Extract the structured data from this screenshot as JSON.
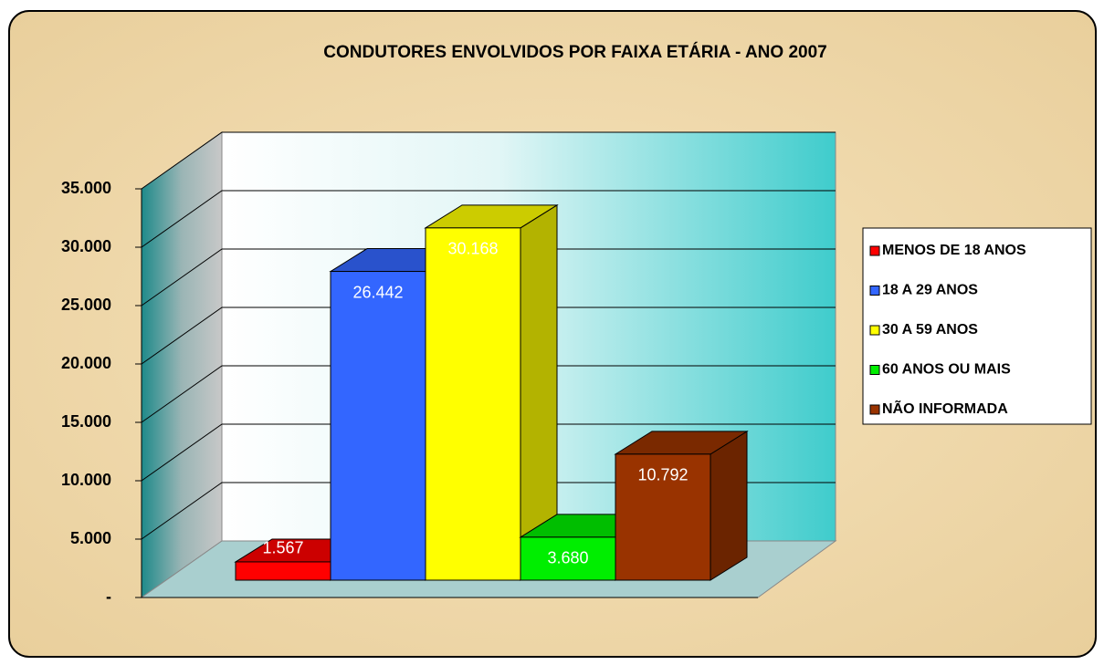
{
  "chart_data": {
    "type": "bar3d",
    "title": "CONDUTORES  ENVOLVIDOS POR FAIXA ETÁRIA - ANO  2007",
    "series": [
      {
        "name": "MENOS DE 18 ANOS",
        "color": "#ff0000",
        "values": [
          1567
        ],
        "value_labels": [
          "1.567"
        ]
      },
      {
        "name": "18 A 29 ANOS",
        "color": "#3366ff",
        "values": [
          26442
        ],
        "value_labels": [
          "26.442"
        ]
      },
      {
        "name": "30 A 59 ANOS",
        "color": "#ffff00",
        "values": [
          30168
        ],
        "value_labels": [
          "30.168"
        ]
      },
      {
        "name": "60 ANOS OU MAIS",
        "color": "#00ee00",
        "values": [
          3680
        ],
        "value_labels": [
          "3.680"
        ]
      },
      {
        "name": "NÃO INFORMADA",
        "color": "#993300",
        "values": [
          10792
        ],
        "value_labels": [
          "10.792"
        ]
      }
    ],
    "ylim": [
      0,
      35000
    ],
    "yticks": [
      {
        "value": 0,
        "label": "-"
      },
      {
        "value": 5000,
        "label": "5.000"
      },
      {
        "value": 10000,
        "label": "10.000"
      },
      {
        "value": 15000,
        "label": "15.000"
      },
      {
        "value": 20000,
        "label": "20.000"
      },
      {
        "value": 25000,
        "label": "25.000"
      },
      {
        "value": 30000,
        "label": "30.000"
      },
      {
        "value": 35000,
        "label": "35.000"
      }
    ],
    "grid": true,
    "legend": "right"
  }
}
